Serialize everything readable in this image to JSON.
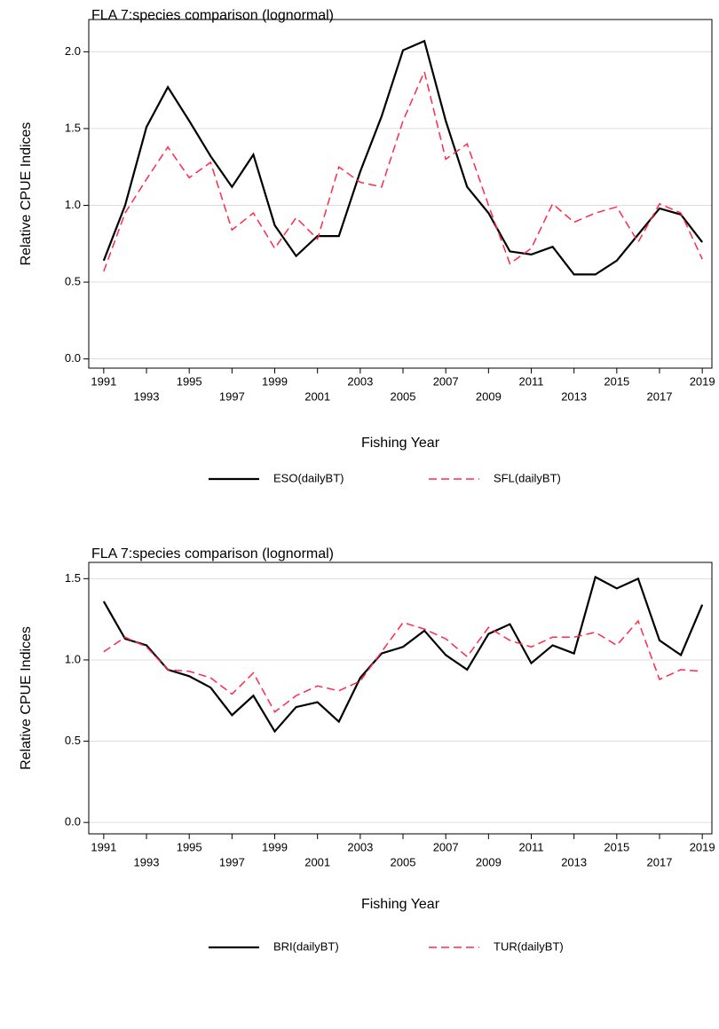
{
  "chart_data": [
    {
      "type": "line",
      "title": "FLA 7:species comparison (lognormal)",
      "x_label": "Fishing Year",
      "y_label": "Relative CPUE Indices",
      "x": [
        1991,
        1992,
        1993,
        1994,
        1995,
        1996,
        1997,
        1998,
        1999,
        2000,
        2001,
        2002,
        2003,
        2004,
        2005,
        2006,
        2007,
        2008,
        2009,
        2010,
        2011,
        2012,
        2013,
        2014,
        2015,
        2016,
        2017,
        2018,
        2019
      ],
      "series": [
        {
          "name": "ESO(dailyBT)",
          "color": "#000000",
          "dashed": false,
          "values": [
            0.64,
            1.0,
            1.51,
            1.77,
            1.55,
            1.32,
            1.12,
            1.33,
            0.87,
            0.67,
            0.8,
            0.8,
            1.22,
            1.58,
            2.01,
            2.07,
            1.55,
            1.12,
            0.95,
            0.7,
            0.68,
            0.73,
            0.55,
            0.55,
            0.64,
            0.81,
            0.98,
            0.94,
            0.76
          ]
        },
        {
          "name": "SFL(dailyBT)",
          "color": "#ff2a4a",
          "dashed": true,
          "values": [
            0.57,
            0.95,
            1.17,
            1.38,
            1.18,
            1.28,
            0.84,
            0.95,
            0.72,
            0.92,
            0.78,
            1.25,
            1.15,
            1.12,
            1.55,
            1.87,
            1.3,
            1.4,
            1.0,
            0.62,
            0.72,
            1.01,
            0.89,
            0.95,
            0.99,
            0.76,
            1.01,
            0.95,
            0.65
          ]
        }
      ],
      "xlim": [
        1990.3,
        2019.45
      ],
      "xticks": [
        1991,
        1993,
        1995,
        1997,
        1999,
        2001,
        2003,
        2005,
        2007,
        2009,
        2011,
        2013,
        2015,
        2017,
        2019
      ],
      "ylim": [
        -0.06,
        2.21
      ],
      "yticks": [
        {
          "value": 0,
          "label": "0.0"
        },
        {
          "value": 0.5,
          "label": "0.5"
        },
        {
          "value": 1,
          "label": "1.0"
        },
        {
          "value": 1.5,
          "label": "1.5"
        },
        {
          "value": 2,
          "label": "2.0"
        }
      ],
      "grid": true,
      "legend": "bottom"
    },
    {
      "type": "line",
      "title": "FLA 7:species comparison (lognormal)",
      "x_label": "Fishing Year",
      "y_label": "Relative CPUE Indices",
      "x": [
        1991,
        1992,
        1993,
        1994,
        1995,
        1996,
        1997,
        1998,
        1999,
        2000,
        2001,
        2002,
        2003,
        2004,
        2005,
        2006,
        2007,
        2008,
        2009,
        2010,
        2011,
        2012,
        2013,
        2014,
        2015,
        2016,
        2017,
        2018,
        2019
      ],
      "series": [
        {
          "name": "BRI(dailyBT)",
          "color": "#000000",
          "dashed": false,
          "values": [
            1.36,
            1.13,
            1.09,
            0.94,
            0.9,
            0.83,
            0.66,
            0.78,
            0.56,
            0.71,
            0.74,
            0.62,
            0.89,
            1.04,
            1.08,
            1.18,
            1.03,
            0.94,
            1.16,
            1.22,
            0.98,
            1.09,
            1.04,
            1.51,
            1.44,
            1.5,
            1.12,
            1.03,
            1.34
          ]
        },
        {
          "name": "TUR(dailyBT)",
          "color": "#ff2a4a",
          "dashed": true,
          "values": [
            1.05,
            1.14,
            1.08,
            0.94,
            0.93,
            0.89,
            0.79,
            0.92,
            0.68,
            0.78,
            0.84,
            0.81,
            0.87,
            1.05,
            1.23,
            1.19,
            1.13,
            1.02,
            1.2,
            1.12,
            1.08,
            1.14,
            1.14,
            1.17,
            1.09,
            1.24,
            0.88,
            0.94,
            0.93
          ]
        }
      ],
      "xlim": [
        1990.3,
        2019.45
      ],
      "xticks": [
        1991,
        1993,
        1995,
        1997,
        1999,
        2001,
        2003,
        2005,
        2007,
        2009,
        2011,
        2013,
        2015,
        2017,
        2019
      ],
      "ylim": [
        -0.07,
        1.6
      ],
      "yticks": [
        {
          "value": 0,
          "label": "0.0"
        },
        {
          "value": 0.5,
          "label": "0.5"
        },
        {
          "value": 1,
          "label": "1.0"
        },
        {
          "value": 1.5,
          "label": "1.5"
        }
      ],
      "grid": true,
      "legend": "bottom"
    }
  ]
}
